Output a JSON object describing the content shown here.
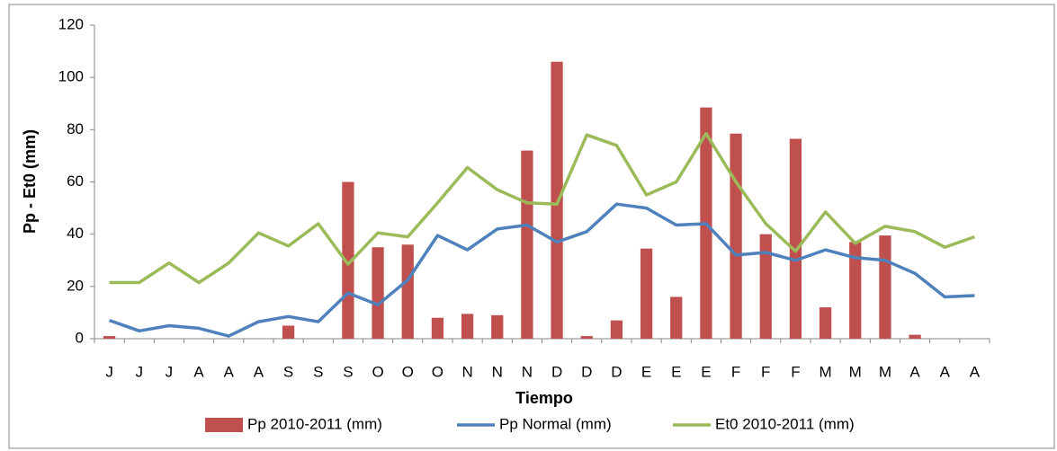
{
  "chart_data": {
    "type": "bar_line",
    "categories": [
      "J",
      "J",
      "J",
      "A",
      "A",
      "A",
      "S",
      "S",
      "S",
      "O",
      "O",
      "O",
      "N",
      "N",
      "N",
      "D",
      "D",
      "D",
      "E",
      "E",
      "E",
      "F",
      "F",
      "F",
      "M",
      "M",
      "M",
      "A",
      "A",
      "A"
    ],
    "series": [
      {
        "name": "Pp 2010-2011 (mm)",
        "type": "bar",
        "color": "#c0504d",
        "values": [
          1,
          0,
          0,
          0,
          0,
          0,
          5,
          0,
          60,
          35,
          36,
          8,
          9.5,
          9,
          72,
          106,
          1,
          7,
          34.5,
          16,
          88.5,
          78.5,
          40,
          76.5,
          12,
          37,
          39.5,
          1.5,
          0,
          0
        ]
      },
      {
        "name": "Pp Normal (mm)",
        "type": "line",
        "color": "#4f81bd",
        "values": [
          7,
          3,
          5,
          4,
          1,
          6.5,
          8.5,
          6.5,
          17.5,
          13,
          22.5,
          39.5,
          34,
          42,
          43.5,
          37,
          41,
          51.5,
          50,
          43.5,
          44,
          32,
          33,
          30,
          34,
          31,
          30,
          25,
          16,
          16.5
        ]
      },
      {
        "name": "Et0 2010-2011 (mm)",
        "type": "line",
        "color": "#9bbb59",
        "values": [
          21.5,
          21.5,
          29,
          21.5,
          29,
          40.5,
          35.5,
          44,
          28.5,
          40.5,
          39,
          52,
          65.5,
          57,
          52,
          51.5,
          78,
          74,
          55,
          60,
          78.5,
          60,
          44,
          33.5,
          48.5,
          36.5,
          43,
          41,
          35,
          39
        ]
      }
    ],
    "y_label": "Pp - Et0 (mm)",
    "x_label": "Tiempo",
    "ylim": [
      0,
      120
    ],
    "yticks": [
      0,
      20,
      40,
      60,
      80,
      100,
      120
    ],
    "grid": false,
    "legend": "bottom"
  }
}
